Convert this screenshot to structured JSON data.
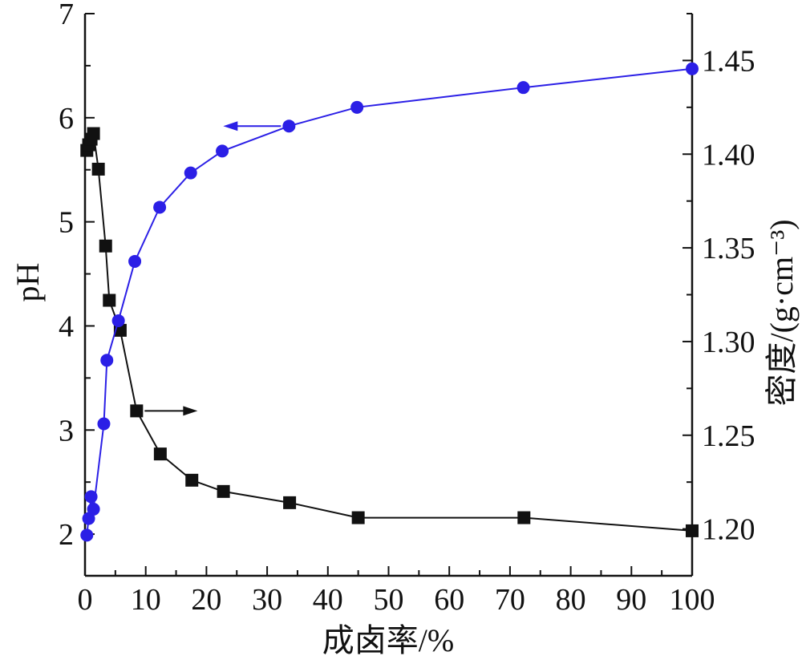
{
  "chart_data": {
    "type": "line",
    "xlabel": "成卤率/%",
    "ylabel_left": "pH",
    "ylabel_right": "密度/(g·cm⁻³)",
    "x_ticks": [
      0,
      10,
      20,
      30,
      40,
      50,
      60,
      70,
      80,
      90,
      100
    ],
    "xlim": [
      0,
      100
    ],
    "y_left_ticks": [
      2,
      3,
      4,
      5,
      6,
      7
    ],
    "ylim_left": [
      1.6,
      7.0
    ],
    "y_right_ticks": [
      "1.20",
      "1.25",
      "1.30",
      "1.35",
      "1.40",
      "1.45"
    ],
    "ylim_right": [
      1.175,
      1.475
    ],
    "grid": false,
    "series": [
      {
        "axis": "left",
        "marker": "circle",
        "color": "#2b1fe6",
        "x": [
          0.3,
          0.6,
          1.0,
          1.4,
          3.1,
          3.6,
          5.5,
          8.2,
          12.3,
          17.4,
          22.6,
          33.6,
          44.8,
          72.2,
          100
        ],
        "y": [
          1.99,
          2.15,
          2.36,
          2.24,
          3.06,
          3.67,
          4.05,
          4.62,
          5.14,
          5.47,
          5.68,
          5.92,
          6.1,
          6.29,
          6.47
        ]
      },
      {
        "axis": "right",
        "marker": "square",
        "color": "#111111",
        "x": [
          0.3,
          0.6,
          1.0,
          1.4,
          2.2,
          3.4,
          4.0,
          5.8,
          8.5,
          12.4,
          17.6,
          22.8,
          33.7,
          45.0,
          72.3,
          100
        ],
        "y": [
          1.402,
          1.405,
          1.408,
          1.411,
          1.392,
          1.351,
          1.322,
          1.306,
          1.263,
          1.24,
          1.226,
          1.22,
          1.214,
          1.206,
          1.206,
          1.199
        ]
      }
    ],
    "annotations": [
      {
        "type": "arrow",
        "direction": "left",
        "series": 0
      },
      {
        "type": "arrow",
        "direction": "right",
        "series": 1
      }
    ]
  }
}
